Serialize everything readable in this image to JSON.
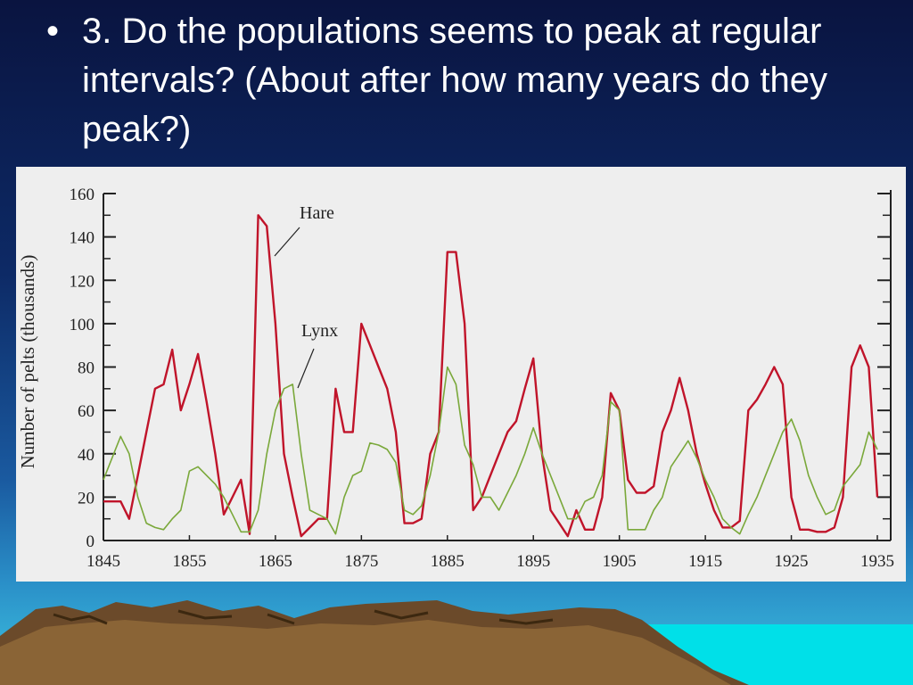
{
  "slide": {
    "bullet": "•",
    "question": "3. Do the populations seems to peak at regular intervals? (About after how many years do they peak?)"
  },
  "colors": {
    "hare": "#c0142a",
    "lynx": "#7aa83a",
    "axis": "#222222",
    "panel": "#eeeeee"
  },
  "chart_data": {
    "type": "line",
    "title": "",
    "xlabel": "",
    "ylabel": "Number of pelts (thousands)",
    "xlim": [
      1845,
      1935
    ],
    "ylim": [
      0,
      160
    ],
    "x_ticks": [
      "1845",
      "1855",
      "1865",
      "1875",
      "1885",
      "1895",
      "1905",
      "1915",
      "1925",
      "1935"
    ],
    "y_ticks": [
      "0",
      "20",
      "40",
      "60",
      "80",
      "100",
      "120",
      "140",
      "160"
    ],
    "grid": false,
    "annotations": [
      {
        "text": "Hare",
        "series": "Hare"
      },
      {
        "text": "Lynx",
        "series": "Lynx"
      }
    ],
    "series": [
      {
        "name": "Hare",
        "x": [
          1845,
          1847,
          1848,
          1849,
          1850,
          1851,
          1852,
          1853,
          1854,
          1855,
          1856,
          1857,
          1858,
          1859,
          1860,
          1861,
          1862,
          1863,
          1864,
          1865,
          1866,
          1867,
          1868,
          1869,
          1870,
          1871,
          1872,
          1873,
          1874,
          1875,
          1876,
          1877,
          1878,
          1879,
          1880,
          1881,
          1882,
          1883,
          1884,
          1885,
          1886,
          1887,
          1888,
          1889,
          1890,
          1891,
          1892,
          1893,
          1894,
          1895,
          1896,
          1897,
          1898,
          1899,
          1900,
          1901,
          1902,
          1903,
          1904,
          1905,
          1906,
          1907,
          1908,
          1909,
          1910,
          1911,
          1912,
          1913,
          1914,
          1915,
          1916,
          1917,
          1918,
          1919,
          1920,
          1921,
          1922,
          1923,
          1924,
          1925,
          1926,
          1927,
          1928,
          1929,
          1930,
          1931,
          1932,
          1933,
          1934,
          1935
        ],
        "y": [
          18,
          18,
          10,
          30,
          50,
          70,
          72,
          88,
          60,
          72,
          86,
          64,
          40,
          12,
          20,
          28,
          3,
          150,
          145,
          100,
          40,
          20,
          2,
          6,
          10,
          10,
          70,
          50,
          50,
          100,
          90,
          80,
          70,
          50,
          8,
          8,
          10,
          40,
          50,
          133,
          133,
          100,
          14,
          20,
          30,
          40,
          50,
          55,
          70,
          84,
          40,
          14,
          8,
          2,
          14,
          5,
          5,
          20,
          68,
          60,
          28,
          22,
          22,
          25,
          50,
          60,
          75,
          60,
          40,
          26,
          14,
          6,
          6,
          9,
          60,
          65,
          72,
          80,
          72,
          20,
          5,
          5,
          4,
          4,
          6,
          20,
          80,
          90,
          80,
          20
        ]
      },
      {
        "name": "Lynx",
        "x": [
          1845,
          1847,
          1848,
          1849,
          1850,
          1851,
          1852,
          1853,
          1854,
          1855,
          1856,
          1857,
          1858,
          1859,
          1860,
          1861,
          1862,
          1863,
          1864,
          1865,
          1866,
          1867,
          1868,
          1869,
          1870,
          1871,
          1872,
          1873,
          1874,
          1875,
          1876,
          1877,
          1878,
          1879,
          1880,
          1881,
          1882,
          1883,
          1884,
          1885,
          1886,
          1887,
          1888,
          1889,
          1890,
          1891,
          1892,
          1893,
          1894,
          1895,
          1896,
          1897,
          1898,
          1899,
          1900,
          1901,
          1902,
          1903,
          1904,
          1905,
          1906,
          1907,
          1908,
          1909,
          1910,
          1911,
          1912,
          1913,
          1914,
          1915,
          1916,
          1917,
          1918,
          1919,
          1920,
          1921,
          1922,
          1923,
          1924,
          1925,
          1926,
          1927,
          1928,
          1929,
          1930,
          1931,
          1932,
          1933,
          1934,
          1935
        ],
        "y": [
          28,
          48,
          40,
          20,
          8,
          6,
          5,
          10,
          14,
          32,
          34,
          30,
          26,
          20,
          12,
          4,
          4,
          14,
          40,
          60,
          70,
          72,
          40,
          14,
          12,
          10,
          3,
          20,
          30,
          32,
          45,
          44,
          42,
          36,
          14,
          12,
          16,
          30,
          50,
          80,
          72,
          44,
          35,
          20,
          20,
          14,
          22,
          30,
          40,
          52,
          40,
          30,
          20,
          10,
          10,
          18,
          20,
          30,
          64,
          60,
          5,
          5,
          5,
          14,
          20,
          34,
          40,
          46,
          38,
          28,
          20,
          10,
          6,
          3,
          12,
          20,
          30,
          40,
          50,
          56,
          46,
          30,
          20,
          12,
          14,
          25,
          30,
          35,
          50,
          42
        ]
      }
    ]
  }
}
